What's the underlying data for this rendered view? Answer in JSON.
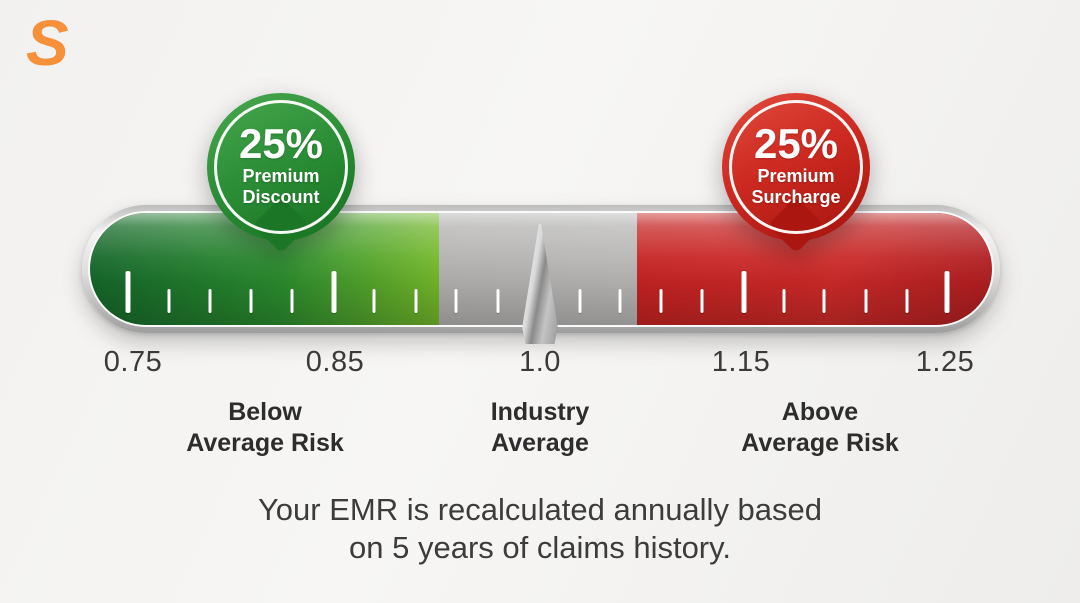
{
  "logo": {
    "letter": "S",
    "color": "#f6903b"
  },
  "balloons": {
    "discount": {
      "value": "25%",
      "line1": "Premium",
      "line2": "Discount",
      "color": "#2d9038",
      "points_at": 0.82
    },
    "surcharge": {
      "value": "25%",
      "line1": "Premium",
      "line2": "Surcharge",
      "color": "#cd2a21",
      "points_at": 1.17
    }
  },
  "scale": {
    "labels": [
      "0.75",
      "0.85",
      "1.0",
      "1.15",
      "1.25"
    ]
  },
  "zones": {
    "below": {
      "line1": "Below",
      "line2": "Average Risk"
    },
    "industry": {
      "line1": "Industry",
      "line2": "Average"
    },
    "above": {
      "line1": "Above",
      "line2": "Average Risk"
    }
  },
  "footer": {
    "line1": "Your EMR is recalculated annually based",
    "line2": "on 5 years of claims history."
  },
  "chart_data": {
    "type": "gauge",
    "title": "",
    "scale": {
      "min": 0.75,
      "max": 1.25,
      "tick_labels": [
        0.75,
        0.85,
        1.0,
        1.15,
        1.25
      ]
    },
    "needle_value": 1.0,
    "zones": [
      {
        "label": "Below Average Risk",
        "range": [
          0.75,
          0.93
        ],
        "color": "#2b8c2e",
        "annotation": "25% Premium Discount"
      },
      {
        "label": "Industry Average",
        "range": [
          0.93,
          1.07
        ],
        "color": "#b5b4b3",
        "annotation": null
      },
      {
        "label": "Above Average Risk",
        "range": [
          1.07,
          1.25
        ],
        "color": "#c52322",
        "annotation": "25% Premium Surcharge"
      }
    ],
    "caption": "Your EMR is recalculated annually based on 5 years of claims history.",
    "ticks": [
      {
        "pct": 4.2,
        "major": true
      },
      {
        "pct": 8.8,
        "major": false
      },
      {
        "pct": 13.3,
        "major": false
      },
      {
        "pct": 17.9,
        "major": false
      },
      {
        "pct": 22.4,
        "major": false
      },
      {
        "pct": 27.0,
        "major": true
      },
      {
        "pct": 31.5,
        "major": false
      },
      {
        "pct": 36.1,
        "major": false
      },
      {
        "pct": 40.6,
        "major": false
      },
      {
        "pct": 45.2,
        "major": false
      },
      {
        "pct": 54.3,
        "major": false
      },
      {
        "pct": 58.8,
        "major": false
      },
      {
        "pct": 63.3,
        "major": false
      },
      {
        "pct": 67.8,
        "major": false
      },
      {
        "pct": 72.5,
        "major": true
      },
      {
        "pct": 76.9,
        "major": false
      },
      {
        "pct": 81.4,
        "major": false
      },
      {
        "pct": 86.0,
        "major": false
      },
      {
        "pct": 90.6,
        "major": false
      },
      {
        "pct": 95.0,
        "major": true
      }
    ]
  }
}
